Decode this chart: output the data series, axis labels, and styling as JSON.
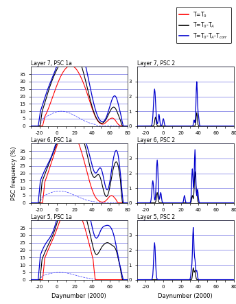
{
  "xlim": [
    -30,
    80
  ],
  "ylim_1a": [
    0,
    40
  ],
  "ylim_2": [
    0,
    4
  ],
  "yticks_1a": [
    0,
    5,
    10,
    15,
    20,
    25,
    30,
    35
  ],
  "yticks_2": [
    0,
    1,
    2,
    3
  ],
  "xlabel": "Daynumber (2000)",
  "ylabel": "PSC frequency (%)",
  "colors": {
    "red": "#FF0000",
    "black": "#000000",
    "blue_dark": "#0000CD",
    "blue_medium": "#4444FF",
    "blue_light": "#8888FF"
  },
  "xticks": [
    -30,
    -20,
    -10,
    0,
    10,
    20,
    30,
    40,
    50,
    60,
    70,
    80
  ],
  "layers": [
    7,
    6,
    5
  ]
}
